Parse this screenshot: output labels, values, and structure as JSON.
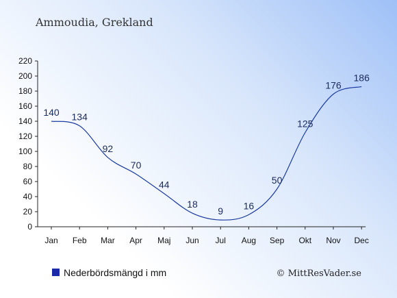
{
  "chart_data": {
    "type": "line",
    "title": "Ammoudia, Grekland",
    "categories": [
      "Jan",
      "Feb",
      "Mar",
      "Apr",
      "Maj",
      "Jun",
      "Jul",
      "Aug",
      "Sep",
      "Okt",
      "Nov",
      "Dec"
    ],
    "series": [
      {
        "name": "Nederbördsmängd i mm",
        "values": [
          140,
          134,
          92,
          70,
          44,
          18,
          9,
          16,
          50,
          125,
          176,
          186
        ]
      }
    ],
    "ylim": [
      0,
      220
    ],
    "yticks": [
      0,
      20,
      40,
      60,
      80,
      100,
      120,
      140,
      160,
      180,
      200,
      220
    ],
    "grid": false,
    "legend_placement": "bottom-left",
    "line_color": "#1a3aa0",
    "legend_color": "#1a2aa8"
  },
  "copyright": "© MittResVader.se"
}
